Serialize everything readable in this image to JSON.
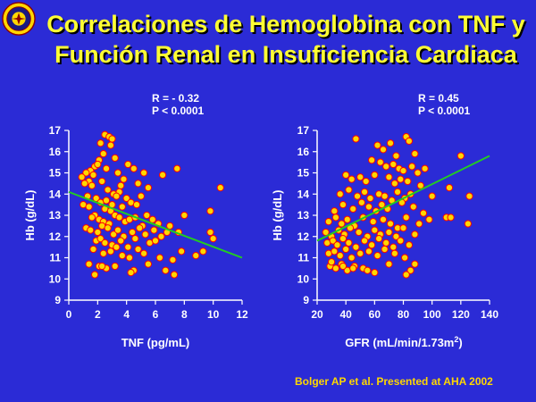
{
  "slide": {
    "title_line1": "Correlaciones de Hemoglobina con TNF y",
    "title_line2": "Función Renal en Insuficiencia Cardiaca",
    "citation": "Bolger AP et al. Presented at AHA 2002",
    "logo": "university-seal-icon"
  },
  "colors": {
    "background": "#2b2bd6",
    "title": "#ffff33",
    "point_fill": "#ffd700",
    "point_stroke": "#ff0000",
    "trendline": "#22cc22",
    "axis": "#ffffff",
    "citation": "#ffd700"
  },
  "chart_data": [
    {
      "type": "scatter",
      "xlabel": "TNF (pg/mL)",
      "ylabel": "Hb (g/dL)",
      "stat_r": "R  = - 0.32",
      "stat_p": "P < 0.0001",
      "xlim": [
        0,
        12
      ],
      "ylim": [
        9,
        17
      ],
      "xticks": [
        "0",
        "2",
        "4",
        "6",
        "8",
        "10",
        "12"
      ],
      "yticks": [
        "9",
        "10",
        "11",
        "12",
        "13",
        "14",
        "15",
        "16",
        "17"
      ],
      "trendline": [
        [
          0,
          14.1
        ],
        [
          12,
          11.0
        ]
      ],
      "x": [
        2.5,
        2.8,
        2.2,
        3.0,
        2.4,
        2.9,
        2.1,
        3.2,
        1.8,
        1.5,
        2.0,
        2.6,
        1.2,
        0.9,
        1.4,
        1.7,
        3.4,
        3.8,
        4.1,
        4.5,
        3.6,
        4.8,
        5.2,
        5.5,
        6.5,
        7.5,
        9.8,
        10.5,
        1.1,
        1.6,
        2.3,
        2.7,
        3.1,
        3.5,
        1.3,
        1.9,
        2.2,
        2.6,
        3.0,
        3.3,
        1.0,
        1.4,
        1.8,
        2.5,
        2.9,
        3.7,
        4.0,
        4.3,
        4.7,
        5.0,
        1.6,
        2.1,
        2.4,
        2.8,
        3.2,
        3.5,
        3.9,
        4.2,
        4.6,
        5.1,
        5.4,
        5.8,
        6.2,
        1.2,
        1.5,
        2.0,
        2.3,
        2.7,
        3.1,
        3.4,
        3.8,
        4.4,
        4.9,
        5.3,
        5.9,
        6.4,
        7.0,
        7.6,
        8.0,
        1.9,
        2.2,
        2.5,
        3.0,
        3.6,
        4.1,
        4.6,
        5.6,
        6.0,
        6.8,
        7.8,
        9.8,
        10.0,
        1.7,
        2.4,
        2.9,
        3.3,
        3.7,
        4.2,
        4.8,
        5.2,
        6.3,
        7.2,
        8.8,
        9.3,
        1.4,
        2.1,
        2.6,
        3.2,
        4.5,
        5.5,
        6.7,
        1.8,
        2.3,
        4.3,
        7.3
      ],
      "y": [
        16.8,
        16.7,
        16.4,
        16.6,
        15.9,
        16.3,
        15.6,
        15.7,
        15.3,
        15.1,
        15.4,
        15.2,
        15.0,
        14.8,
        14.6,
        14.9,
        15.0,
        14.7,
        15.4,
        15.2,
        14.4,
        14.5,
        15.0,
        14.3,
        14.9,
        15.2,
        13.2,
        14.3,
        14.5,
        14.4,
        14.6,
        14.2,
        14.0,
        14.1,
        13.9,
        13.8,
        13.6,
        13.7,
        13.5,
        13.9,
        13.5,
        13.4,
        13.0,
        13.3,
        13.2,
        13.4,
        13.8,
        13.6,
        13.5,
        13.9,
        12.9,
        12.8,
        12.7,
        12.6,
        13.0,
        12.9,
        12.7,
        12.8,
        12.9,
        12.5,
        13.0,
        12.8,
        12.6,
        12.4,
        12.3,
        12.2,
        12.5,
        12.4,
        12.1,
        12.3,
        12.0,
        12.2,
        12.4,
        12.1,
        12.3,
        12.0,
        12.5,
        12.2,
        13.0,
        11.8,
        11.9,
        11.7,
        11.6,
        11.8,
        11.5,
        11.9,
        11.7,
        11.8,
        12.2,
        11.3,
        12.2,
        11.9,
        11.4,
        11.2,
        11.3,
        11.5,
        11.1,
        11.0,
        11.4,
        11.2,
        11.0,
        10.9,
        11.1,
        11.3,
        10.7,
        10.6,
        10.5,
        10.6,
        10.4,
        10.7,
        10.4,
        10.2,
        10.6,
        10.3,
        10.2
      ]
    },
    {
      "type": "scatter",
      "xlabel": "GFR (mL/min/1.73m",
      "xlabel_sup": "2",
      "xlabel_tail": ")",
      "ylabel": "Hb (g/dL)",
      "stat_r": "R  = 0.45",
      "stat_p": "P < 0.0001",
      "xlim": [
        20,
        140
      ],
      "ylim": [
        9,
        17
      ],
      "xticks": [
        "20",
        "40",
        "60",
        "80",
        "100",
        "120",
        "140"
      ],
      "yticks": [
        "9",
        "10",
        "11",
        "12",
        "13",
        "14",
        "15",
        "16",
        "17"
      ],
      "trendline": [
        [
          20,
          11.8
        ],
        [
          140,
          15.8
        ]
      ],
      "x": [
        47,
        62,
        66,
        71,
        75,
        82,
        84,
        88,
        120,
        58,
        64,
        68,
        73,
        77,
        80,
        86,
        90,
        95,
        40,
        44,
        50,
        54,
        60,
        70,
        74,
        78,
        83,
        92,
        112,
        36,
        42,
        48,
        53,
        57,
        63,
        67,
        72,
        76,
        81,
        85,
        100,
        126,
        32,
        38,
        45,
        51,
        56,
        61,
        65,
        69,
        79,
        87,
        94,
        110,
        28,
        33,
        37,
        41,
        46,
        52,
        59,
        66,
        71,
        76,
        82,
        91,
        98,
        113,
        26,
        30,
        35,
        39,
        43,
        49,
        55,
        60,
        64,
        70,
        75,
        80,
        88,
        125,
        27,
        31,
        34,
        38,
        42,
        47,
        53,
        58,
        63,
        68,
        73,
        78,
        84,
        28,
        32,
        36,
        40,
        44,
        50,
        56,
        62,
        67,
        74,
        81,
        29,
        33,
        37,
        41,
        46,
        52,
        60,
        70,
        85,
        30,
        38,
        45,
        55,
        88,
        82
      ],
      "y": [
        16.6,
        16.3,
        16.1,
        16.4,
        15.8,
        16.7,
        16.5,
        15.9,
        15.8,
        15.6,
        15.5,
        15.3,
        15.4,
        15.2,
        15.1,
        15.3,
        15.0,
        15.2,
        14.9,
        14.7,
        14.8,
        14.6,
        14.9,
        14.8,
        14.5,
        14.7,
        14.6,
        14.4,
        14.3,
        14.0,
        14.2,
        13.9,
        14.1,
        13.8,
        14.0,
        13.9,
        13.7,
        14.1,
        13.8,
        14.0,
        13.9,
        13.9,
        13.2,
        13.5,
        13.3,
        13.6,
        13.4,
        13.2,
        13.5,
        13.3,
        13.6,
        13.4,
        13.1,
        12.9,
        12.7,
        12.9,
        12.6,
        12.8,
        12.5,
        12.9,
        12.7,
        12.8,
        12.6,
        12.4,
        12.9,
        12.6,
        12.8,
        12.9,
        12.2,
        12.0,
        12.3,
        12.1,
        12.4,
        12.2,
        12.0,
        12.3,
        12.1,
        12.2,
        12.0,
        12.4,
        12.1,
        12.6,
        11.7,
        11.8,
        11.6,
        11.9,
        11.7,
        11.5,
        11.8,
        11.6,
        11.9,
        11.7,
        11.5,
        11.8,
        11.6,
        11.2,
        11.3,
        11.1,
        11.4,
        11.0,
        11.2,
        11.3,
        11.1,
        11.4,
        11.2,
        11.0,
        10.6,
        10.5,
        10.7,
        10.4,
        10.6,
        10.5,
        10.3,
        10.7,
        10.4,
        10.8,
        10.6,
        10.5,
        10.4,
        10.7,
        10.2
      ]
    }
  ]
}
